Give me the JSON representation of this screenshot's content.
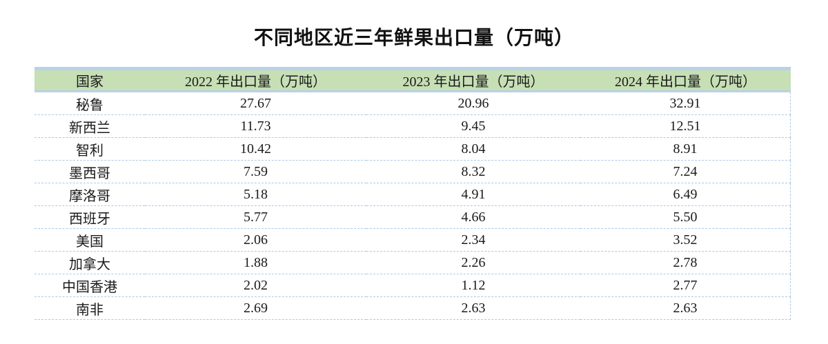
{
  "title": "不同地区近三年鲜果出口量（万吨）",
  "colors": {
    "header_bg": "#c6dfb5",
    "solid_border": "#b9d1e8",
    "dashed_border": "#a9c9e7",
    "text": "#1a1a1a"
  },
  "chart_data": {
    "type": "table",
    "title": "不同地区近三年鲜果出口量（万吨）",
    "columns": [
      "国家",
      "2022 年出口量（万吨）",
      "2023 年出口量（万吨）",
      "2024 年出口量（万吨）"
    ],
    "rows": [
      [
        "秘鲁",
        "27.67",
        "20.96",
        "32.91"
      ],
      [
        "新西兰",
        "11.73",
        "9.45",
        "12.51"
      ],
      [
        "智利",
        "10.42",
        "8.04",
        "8.91"
      ],
      [
        "墨西哥",
        "7.59",
        "8.32",
        "7.24"
      ],
      [
        "摩洛哥",
        "5.18",
        "4.91",
        "6.49"
      ],
      [
        "西班牙",
        "5.77",
        "4.66",
        "5.50"
      ],
      [
        "美国",
        "2.06",
        "2.34",
        "3.52"
      ],
      [
        "加拿大",
        "1.88",
        "2.26",
        "2.78"
      ],
      [
        "中国香港",
        "2.02",
        "1.12",
        "2.77"
      ],
      [
        "南非",
        "2.69",
        "2.63",
        "2.63"
      ]
    ]
  }
}
